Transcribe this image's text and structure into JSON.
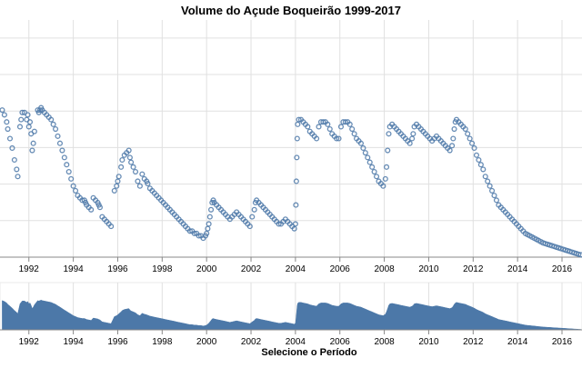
{
  "chart_data": [
    {
      "type": "scatter",
      "title": "Volume do Açude Boqueirão 1999-2017",
      "xlabel": "",
      "ylabel": "",
      "grid": true,
      "color": "#4c78a8",
      "x_ticks": [
        "1992",
        "1994",
        "1996",
        "1998",
        "2000",
        "2002",
        "2004",
        "2006",
        "2008",
        "2010",
        "2012",
        "2014",
        "2016"
      ],
      "xlim": [
        1990.7,
        2016.9
      ],
      "ylim": [
        0,
        100
      ],
      "points": [
        [
          1990.8,
          62
        ],
        [
          1990.9,
          60
        ],
        [
          1991.0,
          57
        ],
        [
          1991.05,
          54
        ],
        [
          1991.15,
          50
        ],
        [
          1991.25,
          46
        ],
        [
          1991.35,
          41
        ],
        [
          1991.45,
          37
        ],
        [
          1991.5,
          34
        ],
        [
          1991.6,
          55
        ],
        [
          1991.65,
          58
        ],
        [
          1991.7,
          61
        ],
        [
          1991.8,
          61
        ],
        [
          1991.9,
          58
        ],
        [
          1992.0,
          55
        ],
        [
          1992.1,
          52
        ],
        [
          1992.2,
          48
        ],
        [
          1991.95,
          60
        ],
        [
          1992.05,
          57
        ],
        [
          1992.15,
          45
        ],
        [
          1992.25,
          53
        ],
        [
          1992.4,
          62
        ],
        [
          1992.45,
          61
        ],
        [
          1992.5,
          62
        ],
        [
          1992.55,
          63
        ],
        [
          1992.6,
          62
        ],
        [
          1992.7,
          61
        ],
        [
          1992.8,
          60
        ],
        [
          1992.9,
          59
        ],
        [
          1993.0,
          58
        ],
        [
          1993.1,
          56
        ],
        [
          1993.2,
          54
        ],
        [
          1993.3,
          51
        ],
        [
          1993.4,
          48
        ],
        [
          1993.5,
          45
        ],
        [
          1993.6,
          42
        ],
        [
          1993.7,
          39
        ],
        [
          1993.8,
          36
        ],
        [
          1993.9,
          33
        ],
        [
          1994.0,
          30
        ],
        [
          1994.1,
          28
        ],
        [
          1994.2,
          26
        ],
        [
          1994.3,
          25
        ],
        [
          1994.4,
          24
        ],
        [
          1994.5,
          24
        ],
        [
          1994.55,
          23
        ],
        [
          1994.6,
          22
        ],
        [
          1994.7,
          21
        ],
        [
          1994.8,
          20
        ],
        [
          1994.9,
          25
        ],
        [
          1995.0,
          24
        ],
        [
          1995.1,
          23
        ],
        [
          1995.15,
          22
        ],
        [
          1995.2,
          21
        ],
        [
          1995.3,
          17
        ],
        [
          1995.4,
          16
        ],
        [
          1995.5,
          15
        ],
        [
          1995.6,
          14
        ],
        [
          1995.7,
          13
        ],
        [
          1995.85,
          28
        ],
        [
          1995.95,
          30
        ],
        [
          1996.0,
          32
        ],
        [
          1996.05,
          34
        ],
        [
          1996.15,
          38
        ],
        [
          1996.2,
          41
        ],
        [
          1996.3,
          43
        ],
        [
          1996.4,
          44
        ],
        [
          1996.5,
          45
        ],
        [
          1996.55,
          42
        ],
        [
          1996.6,
          40
        ],
        [
          1996.7,
          38
        ],
        [
          1996.8,
          36
        ],
        [
          1996.9,
          32
        ],
        [
          1997.0,
          30
        ],
        [
          1997.1,
          35
        ],
        [
          1997.2,
          33
        ],
        [
          1997.3,
          32
        ],
        [
          1997.35,
          31
        ],
        [
          1997.45,
          29
        ],
        [
          1997.55,
          28
        ],
        [
          1997.65,
          27
        ],
        [
          1997.75,
          26
        ],
        [
          1997.85,
          25
        ],
        [
          1997.95,
          24
        ],
        [
          1998.05,
          23
        ],
        [
          1998.15,
          22
        ],
        [
          1998.25,
          21
        ],
        [
          1998.35,
          20
        ],
        [
          1998.45,
          19
        ],
        [
          1998.55,
          18
        ],
        [
          1998.65,
          17
        ],
        [
          1998.75,
          16
        ],
        [
          1998.85,
          15
        ],
        [
          1998.95,
          14
        ],
        [
          1999.05,
          13
        ],
        [
          1999.15,
          12
        ],
        [
          1999.25,
          11
        ],
        [
          1999.35,
          11
        ],
        [
          1999.45,
          10
        ],
        [
          1999.55,
          10
        ],
        [
          1999.65,
          9
        ],
        [
          1999.75,
          9
        ],
        [
          1999.85,
          8
        ],
        [
          1999.95,
          9
        ],
        [
          2000.0,
          10
        ],
        [
          2000.05,
          12
        ],
        [
          2000.1,
          14
        ],
        [
          2000.15,
          17
        ],
        [
          2000.2,
          20
        ],
        [
          2000.25,
          23
        ],
        [
          2000.3,
          24
        ],
        [
          2000.35,
          23
        ],
        [
          2000.45,
          22
        ],
        [
          2000.55,
          21
        ],
        [
          2000.65,
          20
        ],
        [
          2000.75,
          19
        ],
        [
          2000.85,
          18
        ],
        [
          2000.95,
          17
        ],
        [
          2001.05,
          16
        ],
        [
          2001.15,
          17
        ],
        [
          2001.25,
          18
        ],
        [
          2001.35,
          19
        ],
        [
          2001.45,
          18
        ],
        [
          2001.55,
          17
        ],
        [
          2001.65,
          16
        ],
        [
          2001.75,
          15
        ],
        [
          2001.85,
          14
        ],
        [
          2001.95,
          13
        ],
        [
          2002.05,
          17
        ],
        [
          2002.15,
          20
        ],
        [
          2002.2,
          23
        ],
        [
          2002.25,
          24
        ],
        [
          2002.35,
          23
        ],
        [
          2002.45,
          22
        ],
        [
          2002.55,
          21
        ],
        [
          2002.65,
          20
        ],
        [
          2002.75,
          19
        ],
        [
          2002.85,
          18
        ],
        [
          2002.95,
          17
        ],
        [
          2003.05,
          16
        ],
        [
          2003.15,
          15
        ],
        [
          2003.25,
          14
        ],
        [
          2003.35,
          14
        ],
        [
          2003.45,
          15
        ],
        [
          2003.55,
          16
        ],
        [
          2003.65,
          15
        ],
        [
          2003.75,
          14
        ],
        [
          2003.85,
          13
        ],
        [
          2003.95,
          12
        ],
        [
          2004.0,
          14
        ],
        [
          2004.02,
          22
        ],
        [
          2004.04,
          32
        ],
        [
          2004.06,
          42
        ],
        [
          2004.08,
          50
        ],
        [
          2004.1,
          56
        ],
        [
          2004.15,
          58
        ],
        [
          2004.25,
          58
        ],
        [
          2004.35,
          57
        ],
        [
          2004.45,
          56
        ],
        [
          2004.55,
          55
        ],
        [
          2004.65,
          53
        ],
        [
          2004.75,
          52
        ],
        [
          2004.85,
          51
        ],
        [
          2004.95,
          50
        ],
        [
          2005.05,
          55
        ],
        [
          2005.15,
          57
        ],
        [
          2005.25,
          57
        ],
        [
          2005.35,
          57
        ],
        [
          2005.45,
          56
        ],
        [
          2005.55,
          54
        ],
        [
          2005.65,
          52
        ],
        [
          2005.75,
          51
        ],
        [
          2005.85,
          50
        ],
        [
          2005.95,
          50
        ],
        [
          2006.05,
          55
        ],
        [
          2006.15,
          57
        ],
        [
          2006.25,
          57
        ],
        [
          2006.35,
          57
        ],
        [
          2006.45,
          56
        ],
        [
          2006.55,
          54
        ],
        [
          2006.65,
          52
        ],
        [
          2006.75,
          50
        ],
        [
          2006.85,
          49
        ],
        [
          2006.95,
          48
        ],
        [
          2007.05,
          46
        ],
        [
          2007.15,
          44
        ],
        [
          2007.25,
          42
        ],
        [
          2007.35,
          40
        ],
        [
          2007.45,
          38
        ],
        [
          2007.55,
          36
        ],
        [
          2007.65,
          34
        ],
        [
          2007.75,
          32
        ],
        [
          2007.85,
          31
        ],
        [
          2007.95,
          30
        ],
        [
          2008.05,
          33
        ],
        [
          2008.1,
          38
        ],
        [
          2008.15,
          45
        ],
        [
          2008.2,
          52
        ],
        [
          2008.25,
          55
        ],
        [
          2008.35,
          56
        ],
        [
          2008.45,
          55
        ],
        [
          2008.55,
          54
        ],
        [
          2008.65,
          53
        ],
        [
          2008.75,
          52
        ],
        [
          2008.85,
          51
        ],
        [
          2008.95,
          50
        ],
        [
          2009.05,
          49
        ],
        [
          2009.15,
          48
        ],
        [
          2009.25,
          50
        ],
        [
          2009.3,
          52
        ],
        [
          2009.35,
          55
        ],
        [
          2009.45,
          56
        ],
        [
          2009.55,
          55
        ],
        [
          2009.65,
          54
        ],
        [
          2009.75,
          53
        ],
        [
          2009.85,
          52
        ],
        [
          2009.95,
          51
        ],
        [
          2010.05,
          50
        ],
        [
          2010.15,
          49
        ],
        [
          2010.25,
          50
        ],
        [
          2010.35,
          51
        ],
        [
          2010.45,
          50
        ],
        [
          2010.55,
          49
        ],
        [
          2010.65,
          48
        ],
        [
          2010.75,
          47
        ],
        [
          2010.85,
          46
        ],
        [
          2010.95,
          45
        ],
        [
          2011.05,
          47
        ],
        [
          2011.1,
          50
        ],
        [
          2011.15,
          54
        ],
        [
          2011.2,
          57
        ],
        [
          2011.25,
          58
        ],
        [
          2011.35,
          57
        ],
        [
          2011.45,
          56
        ],
        [
          2011.55,
          55
        ],
        [
          2011.65,
          54
        ],
        [
          2011.75,
          52
        ],
        [
          2011.85,
          50
        ],
        [
          2011.95,
          48
        ],
        [
          2012.05,
          46
        ],
        [
          2012.15,
          43
        ],
        [
          2012.25,
          41
        ],
        [
          2012.35,
          39
        ],
        [
          2012.45,
          37
        ],
        [
          2012.55,
          34
        ],
        [
          2012.65,
          32
        ],
        [
          2012.75,
          30
        ],
        [
          2012.85,
          28
        ],
        [
          2012.95,
          26
        ],
        [
          2013.05,
          24
        ],
        [
          2013.15,
          22
        ],
        [
          2013.25,
          21
        ],
        [
          2013.35,
          20
        ],
        [
          2013.45,
          19
        ],
        [
          2013.55,
          18
        ],
        [
          2013.65,
          17
        ],
        [
          2013.75,
          16
        ],
        [
          2013.85,
          15
        ],
        [
          2013.95,
          14
        ],
        [
          2014.05,
          13
        ],
        [
          2014.15,
          12
        ],
        [
          2014.25,
          11
        ],
        [
          2014.35,
          10
        ],
        [
          2014.45,
          9.5
        ],
        [
          2014.55,
          9
        ],
        [
          2014.65,
          8.5
        ],
        [
          2014.75,
          8
        ],
        [
          2014.85,
          7.5
        ],
        [
          2014.95,
          7
        ],
        [
          2015.05,
          6.5
        ],
        [
          2015.15,
          6
        ],
        [
          2015.25,
          5.7
        ],
        [
          2015.35,
          5.4
        ],
        [
          2015.45,
          5.1
        ],
        [
          2015.55,
          4.8
        ],
        [
          2015.65,
          4.5
        ],
        [
          2015.75,
          4.2
        ],
        [
          2015.85,
          3.9
        ],
        [
          2015.95,
          3.6
        ],
        [
          2016.05,
          3.3
        ],
        [
          2016.15,
          3.0
        ],
        [
          2016.25,
          2.7
        ],
        [
          2016.35,
          2.4
        ],
        [
          2016.45,
          2.1
        ],
        [
          2016.55,
          1.8
        ],
        [
          2016.65,
          1.5
        ],
        [
          2016.75,
          1.2
        ],
        [
          2016.85,
          1.0
        ]
      ]
    },
    {
      "type": "area",
      "title": "",
      "xlabel": "Selecione o Período",
      "ylabel": "",
      "color": "#4c78a8",
      "x_ticks": [
        "1992",
        "1994",
        "1996",
        "1998",
        "2000",
        "2002",
        "2004",
        "2006",
        "2008",
        "2010",
        "2012",
        "2014",
        "2016"
      ],
      "xlim": [
        1990.7,
        2016.9
      ],
      "ylim": [
        0,
        100
      ]
    }
  ]
}
